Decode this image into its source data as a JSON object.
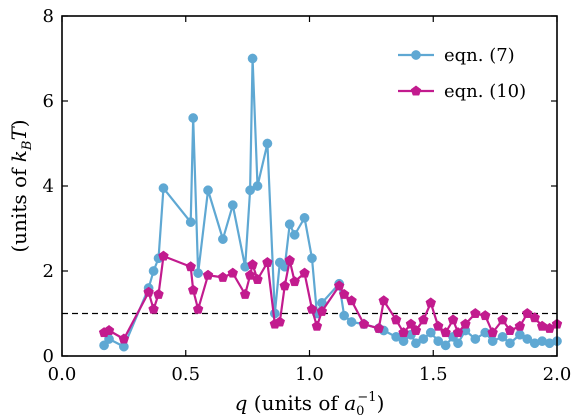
{
  "chart_data": {
    "type": "line",
    "xlabel": "q (units of a₀⁻¹)",
    "ylabel": "(units of k_BT)",
    "xlim": [
      0.0,
      2.0
    ],
    "ylim": [
      0,
      8
    ],
    "xticks": [
      "0.0",
      "0.5",
      "1.0",
      "1.5",
      "2.0"
    ],
    "yticks": [
      "0",
      "2",
      "4",
      "6",
      "8"
    ],
    "grid": false,
    "legend_position": "top-right",
    "reference_line": {
      "y": 1.0,
      "style": "dashed",
      "color": "#000000"
    },
    "series": [
      {
        "name": "eqn. (7)",
        "color": "#5fa8d3",
        "marker": "circle",
        "x": [
          0.17,
          0.19,
          0.25,
          0.35,
          0.37,
          0.39,
          0.41,
          0.52,
          0.53,
          0.55,
          0.59,
          0.65,
          0.69,
          0.74,
          0.76,
          0.77,
          0.79,
          0.83,
          0.86,
          0.88,
          0.9,
          0.92,
          0.94,
          0.98,
          1.01,
          1.03,
          1.05,
          1.12,
          1.14,
          1.17,
          1.22,
          1.28,
          1.3,
          1.35,
          1.38,
          1.41,
          1.43,
          1.46,
          1.49,
          1.52,
          1.55,
          1.58,
          1.6,
          1.63,
          1.67,
          1.71,
          1.74,
          1.78,
          1.81,
          1.85,
          1.88,
          1.91,
          1.94,
          1.97,
          2.0
        ],
        "y": [
          0.25,
          0.4,
          0.22,
          1.6,
          2.0,
          2.3,
          3.95,
          3.15,
          5.6,
          1.95,
          3.9,
          2.75,
          3.55,
          2.1,
          3.9,
          7.0,
          4.0,
          5.0,
          1.0,
          2.2,
          2.1,
          3.1,
          2.85,
          3.25,
          2.3,
          1.0,
          1.25,
          1.7,
          0.95,
          0.8,
          0.75,
          0.65,
          0.6,
          0.45,
          0.35,
          0.5,
          0.3,
          0.4,
          0.55,
          0.35,
          0.25,
          0.45,
          0.3,
          0.6,
          0.4,
          0.55,
          0.35,
          0.45,
          0.3,
          0.5,
          0.4,
          0.3,
          0.35,
          0.3,
          0.35
        ]
      },
      {
        "name": "eqn. (10)",
        "color": "#c21b8e",
        "marker": "pentagon",
        "x": [
          0.17,
          0.19,
          0.25,
          0.35,
          0.37,
          0.39,
          0.41,
          0.52,
          0.53,
          0.55,
          0.59,
          0.65,
          0.69,
          0.74,
          0.76,
          0.77,
          0.79,
          0.83,
          0.86,
          0.88,
          0.9,
          0.92,
          0.94,
          0.98,
          1.01,
          1.03,
          1.05,
          1.12,
          1.14,
          1.17,
          1.22,
          1.28,
          1.3,
          1.35,
          1.38,
          1.41,
          1.43,
          1.46,
          1.49,
          1.52,
          1.55,
          1.58,
          1.6,
          1.63,
          1.67,
          1.71,
          1.74,
          1.78,
          1.81,
          1.85,
          1.88,
          1.91,
          1.94,
          1.97,
          2.0
        ],
        "y": [
          0.55,
          0.6,
          0.4,
          1.5,
          1.1,
          1.45,
          2.35,
          2.1,
          1.55,
          1.1,
          1.9,
          1.85,
          1.95,
          1.45,
          1.9,
          2.15,
          1.8,
          2.2,
          0.75,
          0.8,
          1.65,
          2.25,
          1.75,
          1.95,
          1.1,
          0.7,
          1.05,
          1.65,
          1.45,
          1.3,
          0.75,
          0.65,
          1.3,
          0.85,
          0.55,
          0.75,
          0.6,
          0.85,
          1.25,
          0.7,
          0.55,
          0.85,
          0.55,
          0.75,
          1.0,
          0.95,
          0.55,
          0.85,
          0.6,
          0.7,
          1.0,
          0.9,
          0.7,
          0.65,
          0.75
        ]
      }
    ]
  }
}
